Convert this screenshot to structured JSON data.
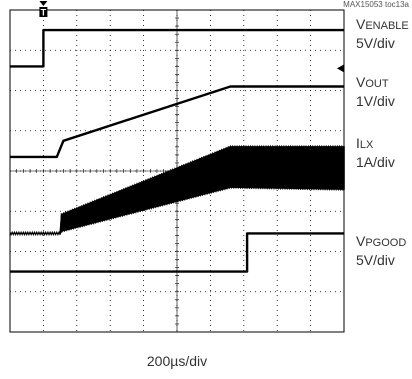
{
  "figure_ref": "MAX15053 toc13a",
  "time_base": "200µs/div",
  "trigger_marker": "T",
  "chart_data": {
    "type": "line",
    "grid": true,
    "xlim_div": [
      0,
      10
    ],
    "ylim_div": [
      0,
      8
    ],
    "x_axis_scale": "200µs/div",
    "channels": [
      {
        "id": "venable",
        "name_main": "V",
        "name_sub": "ENABLE",
        "scale": "5V/div",
        "color": "#000000",
        "points": [
          [
            0,
            6.6
          ],
          [
            1.0,
            6.6
          ],
          [
            1.0,
            7.5
          ],
          [
            10,
            7.5
          ]
        ]
      },
      {
        "id": "vout",
        "name_main": "V",
        "name_sub": "OUT",
        "scale": "1V/div",
        "color": "#000000",
        "points": [
          [
            0,
            4.35
          ],
          [
            1.4,
            4.35
          ],
          [
            1.6,
            4.75
          ],
          [
            6.6,
            6.1
          ],
          [
            10,
            6.1
          ]
        ]
      },
      {
        "id": "ilx",
        "name_main": "I",
        "name_sub": "LX",
        "scale": "1A/div",
        "color": "#000000",
        "envelope": {
          "baseline": 2.45,
          "x": [
            0,
            1.5,
            1.5,
            6.6,
            10
          ],
          "upper": [
            2.45,
            2.45,
            2.9,
            4.6,
            4.6
          ],
          "lower": [
            2.45,
            2.45,
            2.5,
            3.6,
            3.55
          ]
        }
      },
      {
        "id": "vpgood",
        "name_main": "V",
        "name_sub": "PGOOD",
        "scale": "5V/div",
        "color": "#000000",
        "points": [
          [
            0,
            1.5
          ],
          [
            7.1,
            1.5
          ],
          [
            7.1,
            2.45
          ],
          [
            10,
            2.45
          ]
        ]
      }
    ]
  }
}
